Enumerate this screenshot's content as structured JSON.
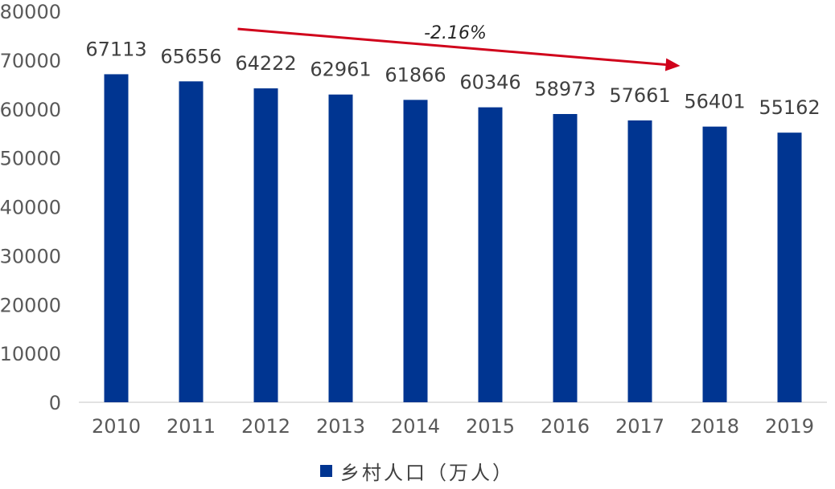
{
  "chart_data": {
    "type": "bar",
    "categories": [
      "2010",
      "2011",
      "2012",
      "2013",
      "2014",
      "2015",
      "2016",
      "2017",
      "2018",
      "2019"
    ],
    "series": [
      {
        "name": "乡村人口（万人）",
        "values": [
          67113,
          65656,
          64222,
          62961,
          61866,
          60346,
          58973,
          57661,
          56401,
          55162
        ],
        "color": "#003591"
      }
    ],
    "ylim": [
      0,
      80000
    ],
    "yticks": [
      "0",
      "10000",
      "20000",
      "30000",
      "40000",
      "50000",
      "60000",
      "70000",
      "80000"
    ],
    "data_labels": [
      "67113",
      "65656",
      "64222",
      "62961",
      "61866",
      "60346",
      "58973",
      "57661",
      "56401",
      "55162"
    ],
    "grid": false,
    "legend_position": "bottom",
    "annotation": {
      "text": "-2.16%",
      "color": "#d0021b",
      "from_category": "2012",
      "to_category": "2017"
    }
  }
}
